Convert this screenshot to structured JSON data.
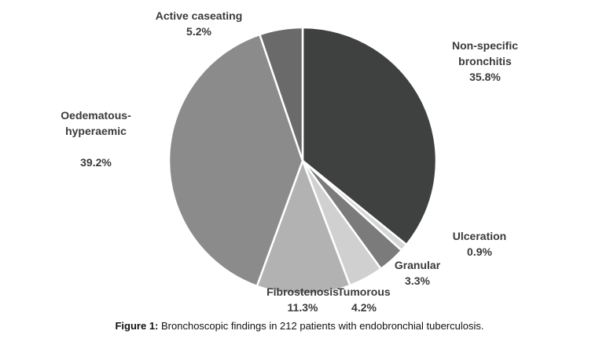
{
  "chart_data": {
    "type": "pie",
    "categories": [
      "Non-specific bronchitis",
      "Ulceration",
      "Granular",
      "Tumorous",
      "Fibrostenosis",
      "Oedematous-hyperaemic",
      "Active caseating"
    ],
    "values": [
      35.8,
      0.9,
      3.3,
      4.2,
      11.3,
      39.2,
      5.2
    ],
    "value_labels": [
      "35.8%",
      "0.9%",
      "3.3%",
      "4.2%",
      "11.3%",
      "39.2%",
      "5.2%"
    ],
    "colors": [
      "#3f4040",
      "#d6d6d6",
      "#7b7b7b",
      "#d0d0d0",
      "#b2b2b2",
      "#8b8b8b",
      "#6a6a6a"
    ]
  },
  "caption": {
    "label": "Figure 1:",
    "text": "Bronchoscopic findings in 212 patients with endobronchial tuberculosis."
  }
}
